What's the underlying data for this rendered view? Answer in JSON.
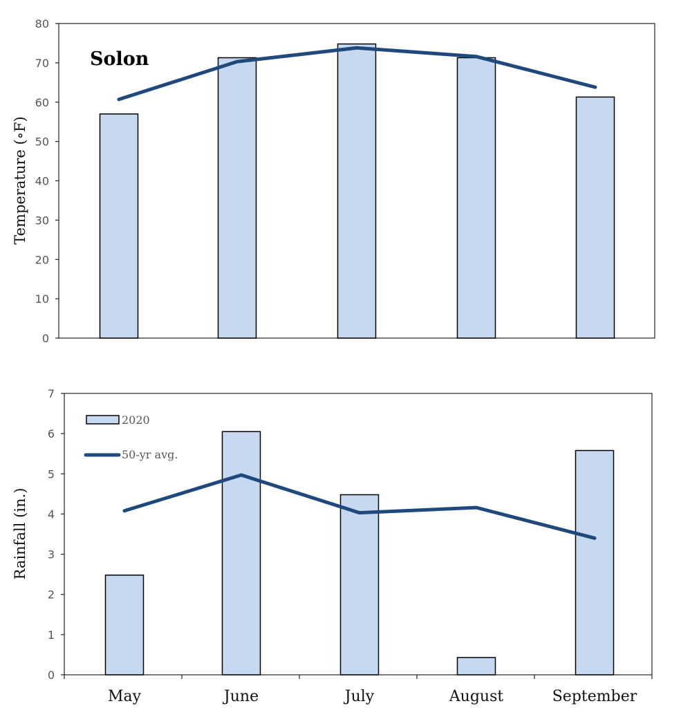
{
  "chart_data": [
    {
      "type": "bar",
      "title": "Solon",
      "ylabel": "Temperature (∘F)",
      "xlabel": "",
      "categories": [
        "May",
        "June",
        "July",
        "August",
        "September"
      ],
      "ylim": [
        0,
        80
      ],
      "yticks": [
        "0",
        "10",
        "20",
        "30",
        "40",
        "50",
        "60",
        "70",
        "80"
      ],
      "grid": false,
      "series": [
        {
          "name": "2020",
          "kind": "bar",
          "values": [
            57.0,
            71.3,
            74.8,
            71.3,
            61.3
          ],
          "color": "#c6d9f1"
        },
        {
          "name": "50-yr avg.",
          "kind": "line",
          "values": [
            60.7,
            70.3,
            73.8,
            71.6,
            63.8
          ],
          "color": "#1f497d"
        }
      ]
    },
    {
      "type": "bar",
      "title": "",
      "ylabel": "Rainfall (in.)",
      "xlabel": "",
      "categories": [
        "May",
        "June",
        "July",
        "August",
        "September"
      ],
      "ylim": [
        0,
        7
      ],
      "yticks": [
        "0",
        "1",
        "2",
        "3",
        "4",
        "5",
        "6",
        "7"
      ],
      "grid": false,
      "legend": {
        "placement": "top-left",
        "entries": [
          "2020",
          "50-yr avg."
        ]
      },
      "series": [
        {
          "name": "2020",
          "kind": "bar",
          "values": [
            2.48,
            6.05,
            4.48,
            0.43,
            5.58
          ],
          "color": "#c6d9f1"
        },
        {
          "name": "50-yr avg.",
          "kind": "line",
          "values": [
            4.08,
            4.97,
            4.03,
            4.16,
            3.4
          ],
          "color": "#1f497d"
        }
      ]
    }
  ]
}
